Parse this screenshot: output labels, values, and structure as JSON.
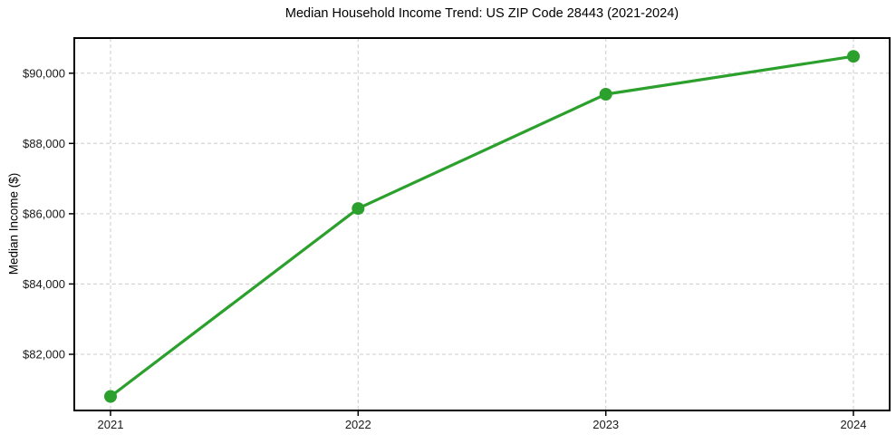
{
  "chart_data": {
    "type": "line",
    "title": "Median Household Income Trend: US ZIP Code 28443 (2021-2024)",
    "ylabel": "Median Income ($)",
    "xlabel": "",
    "categories": [
      "2021",
      "2022",
      "2023",
      "2024"
    ],
    "values": [
      80800,
      86150,
      89400,
      90480
    ],
    "ylim": [
      80400,
      91000
    ],
    "yticks": [
      82000,
      84000,
      86000,
      88000,
      90000
    ],
    "ytick_labels": [
      "$82,000",
      "$84,000",
      "$86,000",
      "$88,000",
      "$90,000"
    ],
    "grid": true,
    "grid_style": "dashed",
    "legend": "none",
    "line_color": "#2ca02c",
    "marker": "circle",
    "grid_color": "#cccccc",
    "spine_color": "#000000",
    "tick_text_color": "#1a1a1a",
    "background_color": "#ffffff"
  }
}
